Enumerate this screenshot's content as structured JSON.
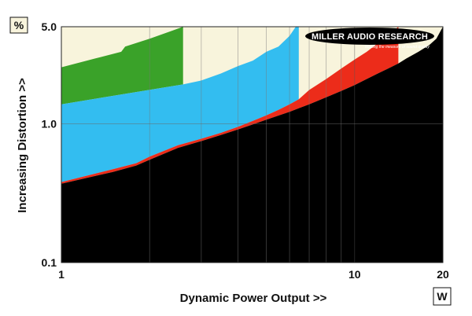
{
  "chart_data": {
    "type": "area",
    "xlabel": "Dynamic Power Output >>",
    "ylabel": "Increasing Distortion >>",
    "x_unit_label": "W",
    "y_unit_label": "%",
    "x_scale": "log",
    "y_scale": "log",
    "xlim": [
      1,
      20
    ],
    "ylim": [
      0.1,
      5.0
    ],
    "x_ticks": [
      {
        "value": 1,
        "label": "1"
      },
      {
        "value": 10,
        "label": "10"
      },
      {
        "value": 20,
        "label": "20"
      }
    ],
    "y_ticks": [
      {
        "value": 0.1,
        "label": "0.1"
      },
      {
        "value": 1.0,
        "label": "1.0"
      },
      {
        "value": 5.0,
        "label": "5.0"
      }
    ],
    "grid": true,
    "logo": {
      "name": "MILLER AUDIO RESEARCH",
      "tagline": "Making the measure of sound quality"
    },
    "colors": {
      "background": "#f8f4dc",
      "green": "#3aa229",
      "blue": "#33bdf0",
      "red": "#ec2c1a",
      "black": "#000000"
    },
    "series": [
      {
        "color": "green",
        "upper": [
          [
            1,
            2.55
          ],
          [
            1.3,
            2.95
          ],
          [
            1.6,
            3.3
          ],
          [
            1.65,
            3.6
          ],
          [
            2.0,
            4.1
          ],
          [
            2.4,
            4.7
          ],
          [
            2.6,
            5.0
          ]
        ],
        "lower": [
          [
            1,
            1.38
          ],
          [
            2.6,
            1.92
          ]
        ]
      },
      {
        "color": "blue",
        "upper": [
          [
            1,
            1.38
          ],
          [
            2.6,
            1.92
          ],
          [
            3.0,
            2.05
          ],
          [
            3.5,
            2.3
          ],
          [
            4.0,
            2.6
          ],
          [
            4.5,
            2.85
          ],
          [
            5.0,
            3.3
          ],
          [
            5.5,
            3.6
          ],
          [
            6.0,
            4.3
          ],
          [
            6.3,
            5.0
          ],
          [
            6.45,
            5.0
          ]
        ],
        "lower": [
          [
            1,
            0.38
          ],
          [
            1.5,
            0.47
          ],
          [
            1.8,
            0.52
          ],
          [
            2.0,
            0.58
          ],
          [
            2.5,
            0.7
          ],
          [
            3.0,
            0.78
          ],
          [
            3.5,
            0.86
          ],
          [
            4.0,
            0.95
          ],
          [
            4.5,
            1.05
          ],
          [
            5.0,
            1.15
          ],
          [
            5.5,
            1.26
          ],
          [
            6.0,
            1.38
          ],
          [
            6.45,
            1.5
          ]
        ]
      },
      {
        "color": "red",
        "upper": [
          [
            1,
            0.38
          ],
          [
            1.5,
            0.47
          ],
          [
            1.8,
            0.52
          ],
          [
            2.0,
            0.58
          ],
          [
            2.5,
            0.7
          ],
          [
            3.0,
            0.78
          ],
          [
            3.5,
            0.86
          ],
          [
            4.0,
            0.95
          ],
          [
            4.5,
            1.05
          ],
          [
            5.0,
            1.15
          ],
          [
            5.5,
            1.26
          ],
          [
            6.0,
            1.38
          ],
          [
            6.45,
            1.5
          ],
          [
            7.0,
            1.75
          ],
          [
            8.0,
            2.1
          ],
          [
            9.0,
            2.5
          ],
          [
            10.0,
            2.9
          ],
          [
            11.0,
            3.3
          ],
          [
            12.0,
            3.8
          ],
          [
            13.0,
            4.3
          ],
          [
            13.8,
            4.8
          ],
          [
            14.1,
            5.0
          ]
        ],
        "lower": [
          [
            1,
            0.37
          ],
          [
            1.5,
            0.45
          ],
          [
            1.8,
            0.5
          ],
          [
            2.0,
            0.55
          ],
          [
            2.5,
            0.67
          ],
          [
            3.0,
            0.75
          ],
          [
            3.5,
            0.83
          ],
          [
            4.0,
            0.91
          ],
          [
            4.5,
            0.99
          ],
          [
            5.0,
            1.07
          ],
          [
            6.0,
            1.22
          ],
          [
            7.0,
            1.38
          ],
          [
            8.0,
            1.55
          ],
          [
            9.0,
            1.72
          ],
          [
            10.0,
            1.9
          ],
          [
            11.0,
            2.1
          ],
          [
            12.0,
            2.3
          ],
          [
            13.0,
            2.5
          ],
          [
            14.1,
            2.72
          ]
        ]
      },
      {
        "color": "black",
        "upper": [
          [
            1,
            0.37
          ],
          [
            1.5,
            0.45
          ],
          [
            1.8,
            0.5
          ],
          [
            2.0,
            0.55
          ],
          [
            2.5,
            0.67
          ],
          [
            3.0,
            0.75
          ],
          [
            3.5,
            0.83
          ],
          [
            4.0,
            0.91
          ],
          [
            4.5,
            0.99
          ],
          [
            5.0,
            1.07
          ],
          [
            6.0,
            1.22
          ],
          [
            7.0,
            1.38
          ],
          [
            8.0,
            1.55
          ],
          [
            9.0,
            1.72
          ],
          [
            10.0,
            1.9
          ],
          [
            11.0,
            2.1
          ],
          [
            12.0,
            2.3
          ],
          [
            13.0,
            2.5
          ],
          [
            14.1,
            2.72
          ],
          [
            15.0,
            2.95
          ],
          [
            16.5,
            3.3
          ],
          [
            18.0,
            3.7
          ],
          [
            19.0,
            4.1
          ],
          [
            20.0,
            5.0
          ]
        ],
        "lower": [
          [
            1,
            0.1
          ],
          [
            20,
            0.1
          ]
        ]
      }
    ]
  }
}
